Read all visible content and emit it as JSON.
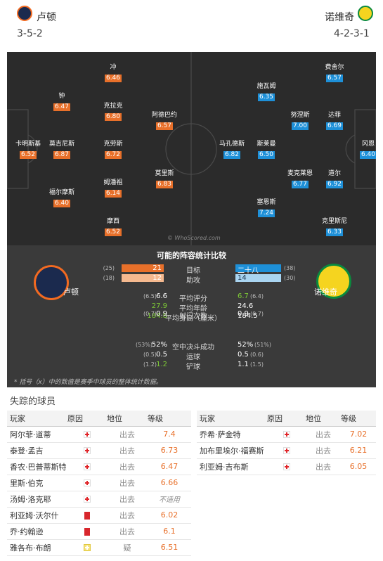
{
  "header": {
    "home_team": "卢顿",
    "home_formation": "3-5-2",
    "away_team": "诺维奇",
    "away_formation": "4-2-3-1"
  },
  "pitch": {
    "watermark": "© WhoScored.com",
    "home_players": [
      {
        "name": "卡明斯基",
        "rating": "6.52"
      },
      {
        "name": "钟",
        "rating": "6.47"
      },
      {
        "name": "莫吉尼斯",
        "rating": "6.87"
      },
      {
        "name": "福尔摩斯",
        "rating": "6.40"
      },
      {
        "name": "冲",
        "rating": "6.46"
      },
      {
        "name": "克拉克",
        "rating": "6.80"
      },
      {
        "name": "克劳斯",
        "rating": "6.72"
      },
      {
        "name": "姆潘祖",
        "rating": "6.14"
      },
      {
        "name": "摩西",
        "rating": "6.52"
      },
      {
        "name": "阿德巴约",
        "rating": "6.57"
      },
      {
        "name": "莫里斯",
        "rating": "6.83"
      }
    ],
    "away_players": [
      {
        "name": "马孔德斯",
        "rating": "6.82"
      },
      {
        "name": "施瓦姆",
        "rating": "6.35"
      },
      {
        "name": "斯莱曼",
        "rating": "6.50"
      },
      {
        "name": "塞恩斯",
        "rating": "7.24"
      },
      {
        "name": "努涅斯",
        "rating": "7.00"
      },
      {
        "name": "麦克莱恩",
        "rating": "6.77"
      },
      {
        "name": "费舍尔",
        "rating": "6.57"
      },
      {
        "name": "达菲",
        "rating": "6.69"
      },
      {
        "name": "道尔",
        "rating": "6.92"
      },
      {
        "name": "克里斯尼",
        "rating": "6.33"
      },
      {
        "name": "冈恩",
        "rating": "6.40"
      }
    ]
  },
  "comparison": {
    "title": "可能的阵容统计比较",
    "home_team": "卢顿",
    "away_team": "诺维奇",
    "rows": [
      {
        "label": "目标",
        "home": "21",
        "home_prev": "(25)",
        "away": "二十八",
        "away_prev": "(38)",
        "home_bar": 0.75,
        "away_bar": 1.0
      },
      {
        "label": "助攻",
        "home": "12",
        "home_prev": "(18)",
        "away": "14",
        "away_prev": "(30)",
        "home_bar": 0.86,
        "away_bar": 1.0
      },
      {
        "label": "平均评分",
        "home": "6.6",
        "home_prev": "(6.5)",
        "away": "6.7",
        "away_prev": "(6.4)"
      },
      {
        "label": "平均年龄",
        "home": "27.9",
        "home_prev": "",
        "away": "24.6",
        "away_prev": ""
      },
      {
        "label": "平均身高（厘米）",
        "home": "184.8",
        "home_prev": "",
        "away": "184.5",
        "away_prev": ""
      },
      {
        "label": "射门次数",
        "home": "0.9",
        "home_prev": "(0.7)",
        "away": "0.9",
        "away_prev": "(0.7)"
      },
      {
        "label": "空中决斗成功",
        "home": "52%",
        "home_prev": "(53%)",
        "away": "52%",
        "away_prev": "(51%)"
      },
      {
        "label": "运球",
        "home": "0.5",
        "home_prev": "(0.5)",
        "away": "0.5",
        "away_prev": "(0.6)"
      },
      {
        "label": "铲球",
        "home": "1.2",
        "home_prev": "(1.2)",
        "away": "1.1",
        "away_prev": "(1.5)"
      }
    ],
    "note": "* 括号（x）中的数值是赛季中球员的整体统计数据。"
  },
  "missing": {
    "title": "失踪的球员",
    "headers": {
      "player": "玩家",
      "reason": "原因",
      "status": "地位",
      "rating": "等级"
    },
    "home": [
      {
        "name": "阿尔菲·道蒂",
        "reason": "injury",
        "status": "出去",
        "rating": "7.4"
      },
      {
        "name": "泰登·孟吉",
        "reason": "injury",
        "status": "出去",
        "rating": "6.73"
      },
      {
        "name": "香农·巴普蒂斯特",
        "reason": "injury",
        "status": "出去",
        "rating": "6.47"
      },
      {
        "name": "里斯·伯克",
        "reason": "injury",
        "status": "出去",
        "rating": "6.66"
      },
      {
        "name": "汤姆·洛克耶",
        "reason": "injury",
        "status": "出去",
        "rating": "不适用"
      },
      {
        "name": "利亚姆·沃尔什",
        "reason": "redcard",
        "status": "出去",
        "rating": "6.02"
      },
      {
        "name": "乔·约翰逊",
        "reason": "redcard",
        "status": "出去",
        "rating": "6.1"
      },
      {
        "name": "雅各布·布朗",
        "reason": "doubt",
        "status": "疑",
        "rating": "6.51"
      }
    ],
    "away": [
      {
        "name": "乔希·萨金特",
        "reason": "injury",
        "status": "出去",
        "rating": "7.02"
      },
      {
        "name": "加布里埃尔·福赛斯",
        "reason": "injury",
        "status": "出去",
        "rating": "6.21"
      },
      {
        "name": "利亚姆·吉布斯",
        "reason": "injury",
        "status": "出去",
        "rating": "6.05"
      }
    ]
  },
  "colors": {
    "home": "#e8702a",
    "away": "#1e90d8",
    "pitch": "#2b2b2b"
  }
}
